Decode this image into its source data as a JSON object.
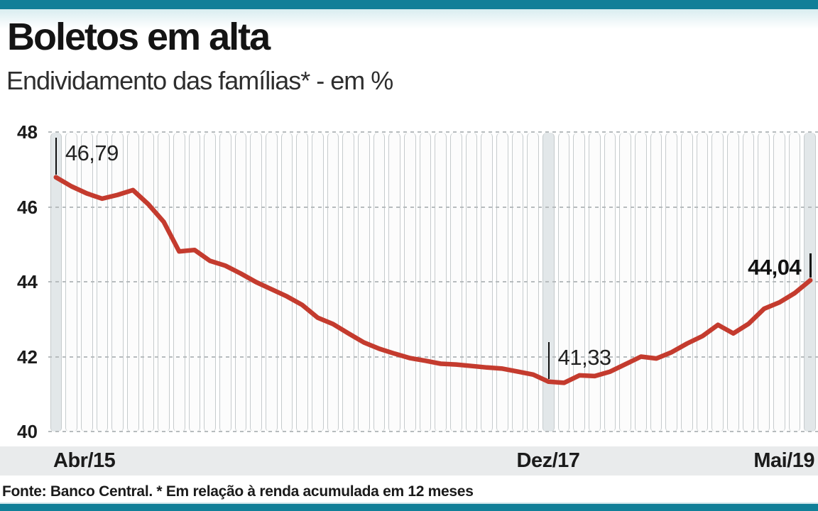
{
  "header": {
    "title": "Boletos em alta",
    "subtitle": "Endividamento das famílias* - em %"
  },
  "footer": {
    "source": "Fonte: Banco Central. * Em relação à renda acumulada em 12 meses"
  },
  "colors": {
    "accent_teal": "#117f98",
    "line_red": "#c43b2e",
    "band_highlight": "#e2e7e9",
    "band_edge": "#c6cbcd",
    "axis_strip_bg": "#e9ebec",
    "grid_dash": "#b7bcbe",
    "text_dark": "#141414"
  },
  "chart_data": {
    "type": "line",
    "title": "Boletos em alta",
    "subtitle": "Endividamento das famílias* - em %",
    "unit": "%",
    "x_period": "monthly",
    "x_tick_labels": [
      "Abr/15",
      "Dez/17",
      "Mai/19"
    ],
    "y_ticks": [
      48,
      46,
      44,
      42,
      40
    ],
    "ylim": [
      40,
      48
    ],
    "grid": "dashed-horizontal",
    "legend": "none",
    "series": [
      {
        "name": "Endividamento das famílias (% da renda acumulada em 12 meses)",
        "values": [
          46.79,
          46.55,
          46.36,
          46.22,
          46.32,
          46.45,
          46.07,
          45.6,
          44.81,
          44.85,
          44.56,
          44.43,
          44.22,
          43.99,
          43.8,
          43.61,
          43.38,
          43.04,
          42.87,
          42.62,
          42.38,
          42.21,
          42.08,
          41.96,
          41.89,
          41.81,
          41.79,
          41.75,
          41.71,
          41.68,
          41.6,
          41.52,
          41.33,
          41.3,
          41.5,
          41.48,
          41.6,
          41.8,
          42.0,
          41.95,
          42.12,
          42.35,
          42.55,
          42.85,
          42.62,
          42.88,
          43.28,
          43.45,
          43.7,
          44.04
        ]
      }
    ],
    "annotations": [
      {
        "month_index": 0,
        "label": "46,79",
        "value": 46.79,
        "x_label": "Abr/15",
        "side": "right",
        "emphasis": false
      },
      {
        "month_index": 32,
        "label": "41,33",
        "value": 41.33,
        "x_label": "Dez/17",
        "side": "right",
        "emphasis": false
      },
      {
        "month_index": 49,
        "label": "44,04",
        "value": 44.04,
        "x_label": "Mai/19",
        "side": "left",
        "emphasis": true
      }
    ],
    "highlighted_months": [
      0,
      32,
      49
    ]
  }
}
